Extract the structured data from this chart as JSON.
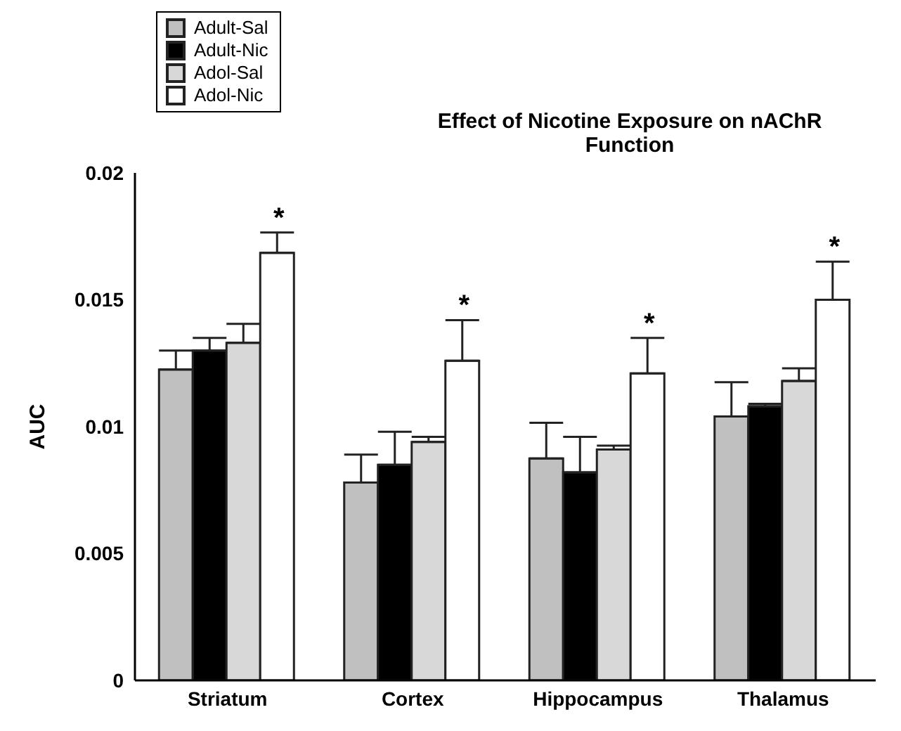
{
  "chart_data": {
    "type": "bar",
    "title": "Effect of Nicotine Exposure on nAChR Function",
    "ylabel": "AUC",
    "categories": [
      "Striatum",
      "Cortex",
      "Hippocampus",
      "Thalamus"
    ],
    "series": [
      {
        "name": "Adult-Sal",
        "color": "#c0c0c0",
        "values": [
          0.01225,
          0.0078,
          0.00875,
          0.0104
        ],
        "errors": [
          [
            0.01225,
            0.013
          ],
          [
            0.0078,
            0.0089
          ],
          [
            0.00875,
            0.01015
          ],
          [
            0.0104,
            0.01175
          ]
        ]
      },
      {
        "name": "Adult-Nic",
        "color": "#000000",
        "values": [
          0.013,
          0.0085,
          0.0082,
          0.0108
        ],
        "errors": [
          [
            0.013,
            0.0135
          ],
          [
            0.0085,
            0.0098
          ],
          [
            0.0082,
            0.0096
          ],
          [
            0.0108,
            0.0109
          ]
        ]
      },
      {
        "name": "Adol-Sal",
        "color": "#d8d8d8",
        "values": [
          0.0133,
          0.0094,
          0.0091,
          0.0118
        ],
        "errors": [
          [
            0.0133,
            0.01405
          ],
          [
            0.0094,
            0.0096
          ],
          [
            0.0091,
            0.00925
          ],
          [
            0.0118,
            0.0123
          ]
        ]
      },
      {
        "name": "Adol-Nic",
        "color": "#ffffff",
        "values": [
          0.01685,
          0.0126,
          0.0121,
          0.015
        ],
        "errors": [
          [
            0.01685,
            0.01765
          ],
          [
            0.0126,
            0.0142
          ],
          [
            0.0121,
            0.0135
          ],
          [
            0.015,
            0.0165
          ]
        ]
      }
    ],
    "ylim": [
      0,
      0.02
    ],
    "yticks": [
      0,
      0.005,
      0.01,
      0.015,
      0.02
    ],
    "grid": false,
    "legend": "top left",
    "annotations": [
      "*",
      "*",
      "*",
      "*"
    ]
  }
}
